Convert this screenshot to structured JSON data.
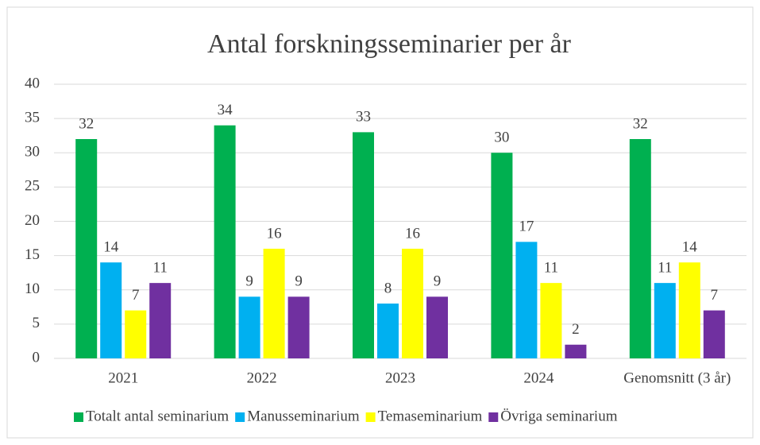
{
  "chart_data": {
    "type": "bar",
    "title": "Antal forskningsseminarier per år",
    "categories": [
      "2021",
      "2022",
      "2023",
      "2024",
      "Genomsnitt (3 år)"
    ],
    "series": [
      {
        "name": "Totalt antal seminarium",
        "color": "#00b050",
        "values": [
          32,
          34,
          33,
          30,
          32
        ]
      },
      {
        "name": "Manusseminarium",
        "color": "#00b0f0",
        "values": [
          14,
          9,
          8,
          17,
          11
        ]
      },
      {
        "name": "Temaseminarium",
        "color": "#ffff00",
        "values": [
          7,
          16,
          16,
          11,
          14
        ]
      },
      {
        "name": "Övriga seminarium",
        "color": "#7030a0",
        "values": [
          11,
          9,
          9,
          2,
          7
        ]
      }
    ],
    "ylim": [
      0,
      40
    ],
    "yticks": [
      0,
      5,
      10,
      15,
      20,
      25,
      30,
      35,
      40
    ],
    "grid": true,
    "legend": "bottom"
  }
}
